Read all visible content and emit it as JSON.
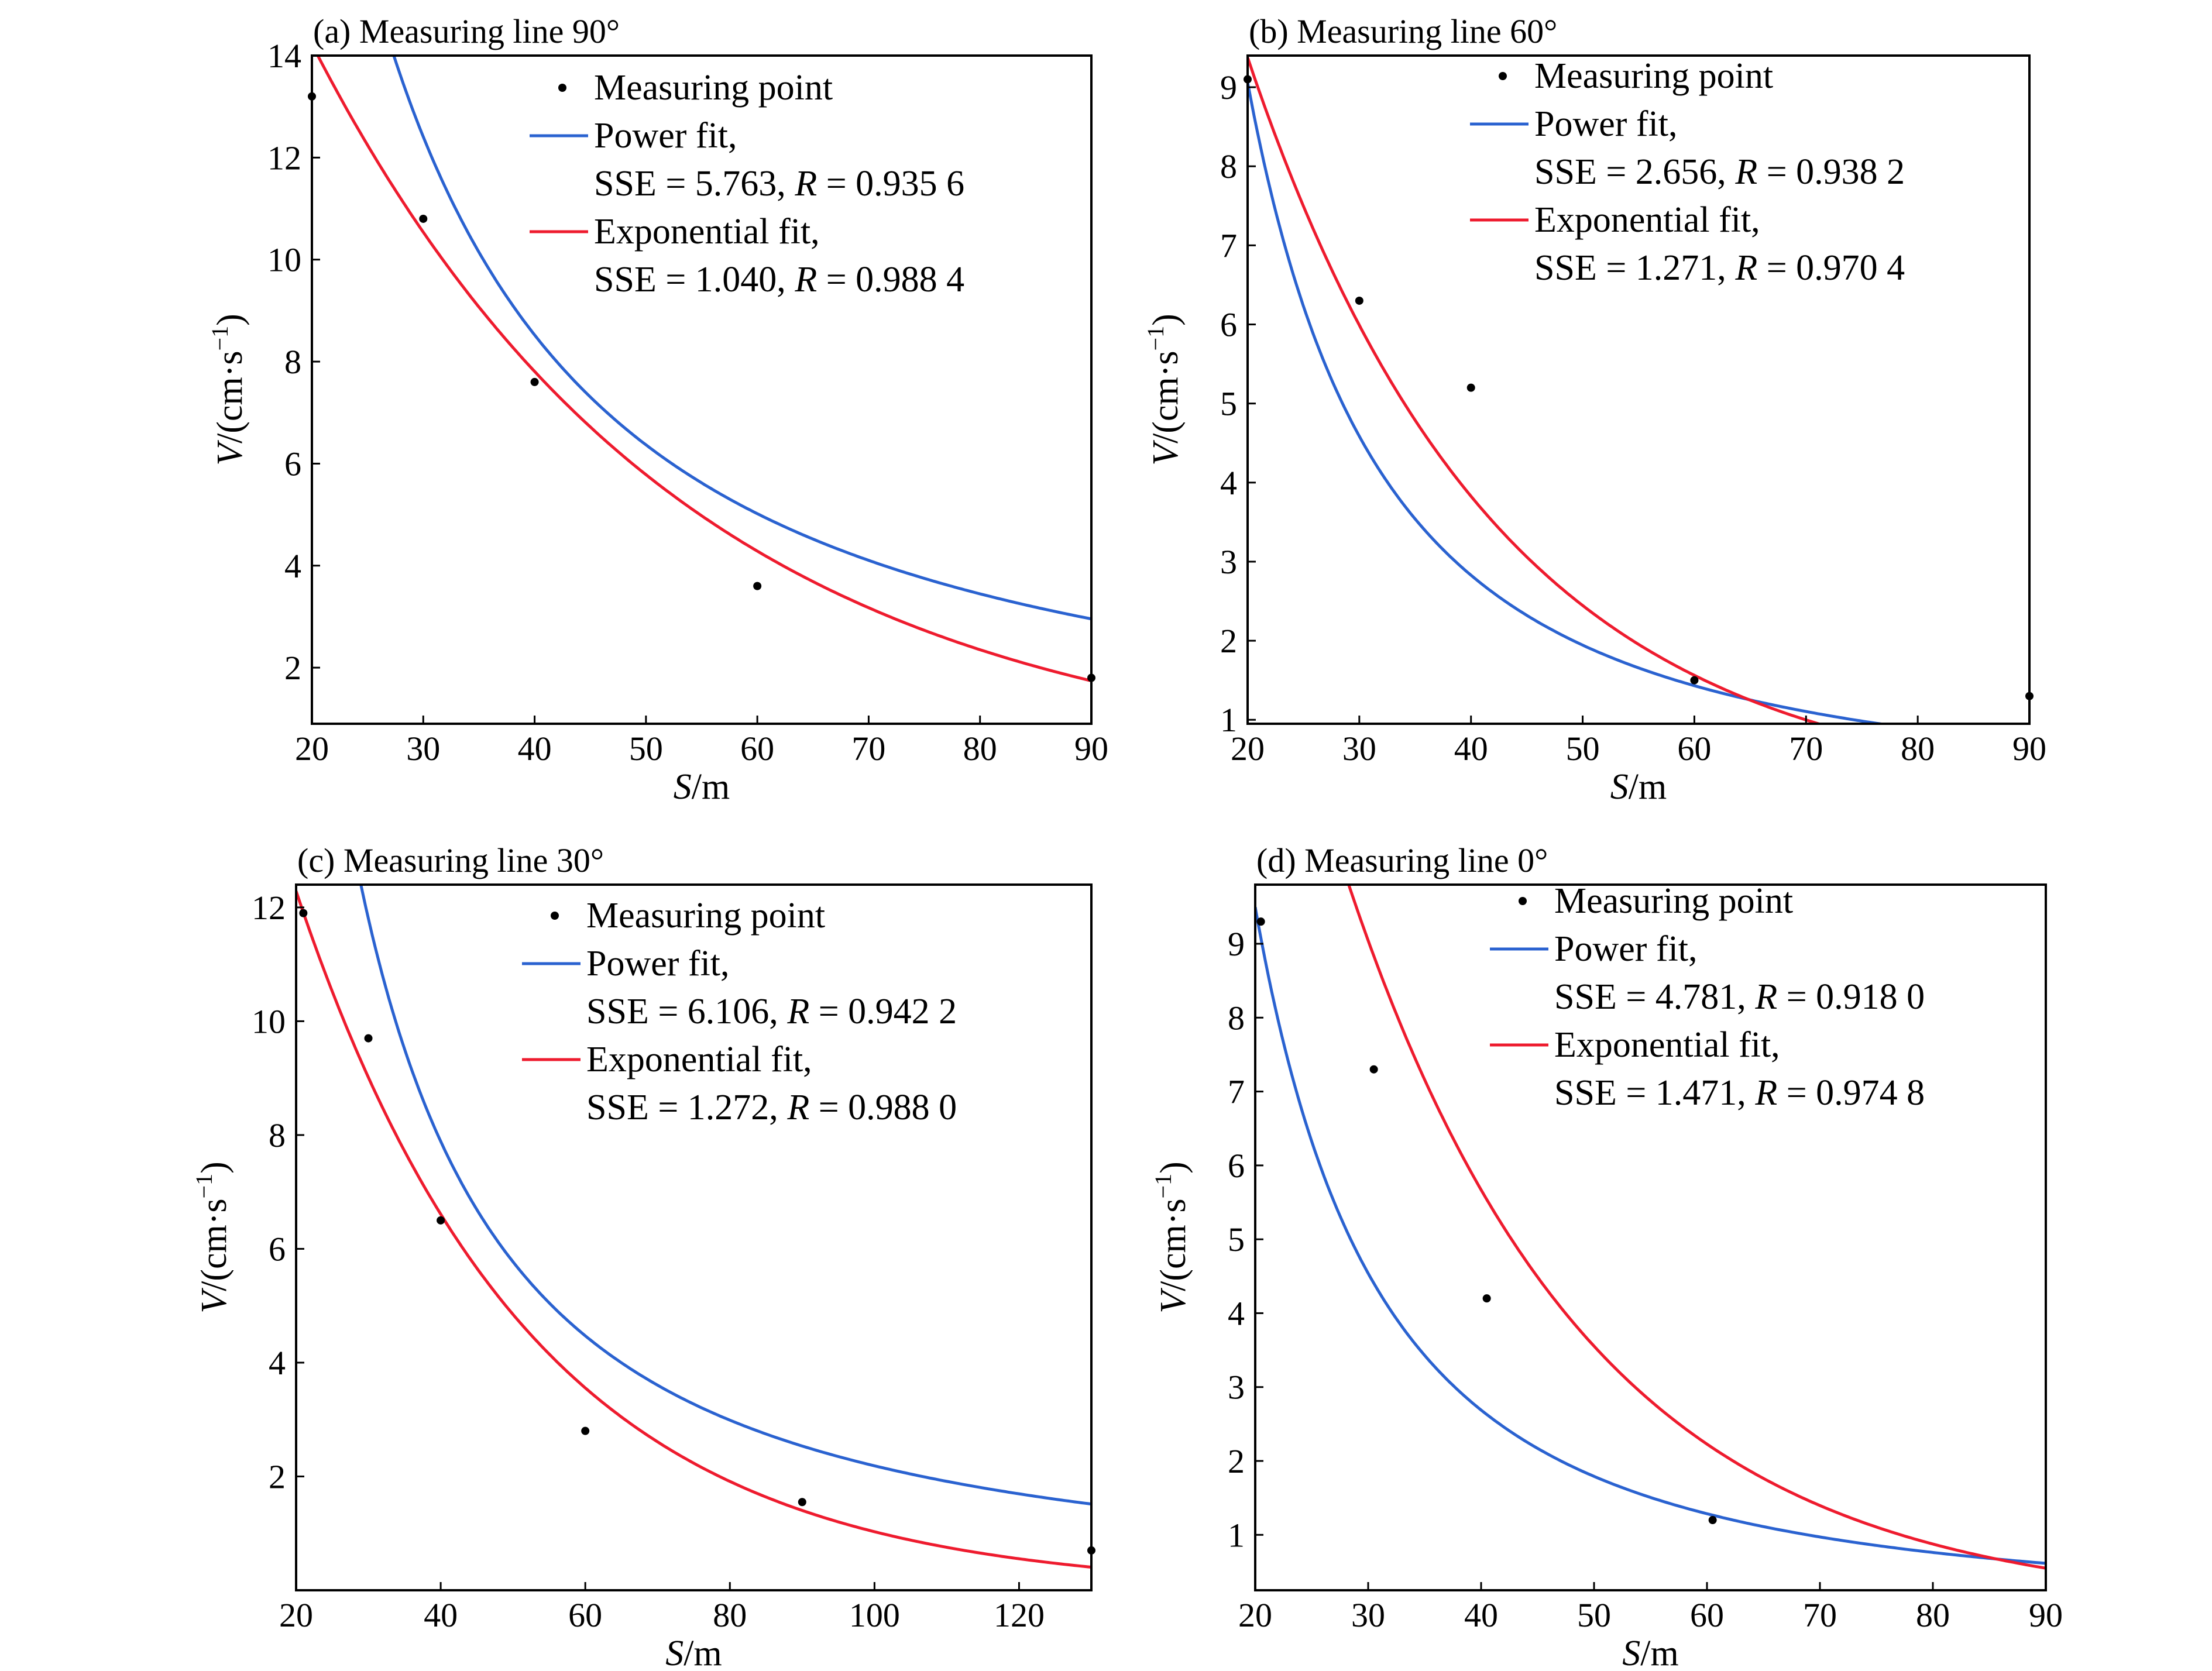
{
  "colors": {
    "power": "#2a62d0",
    "exponential": "#ee1b2e",
    "points": "#000000",
    "axis": "#000000"
  },
  "chart_data": [
    {
      "type": "scatter",
      "title": "(a) Measuring line 90°",
      "xlabel_var": "S",
      "xlabel_unit": "/m",
      "ylabel_var": "V",
      "ylabel_unit": "/(cm·s",
      "xlim": [
        20,
        90
      ],
      "ylim": [
        0.9,
        14
      ],
      "xticks": [
        20,
        30,
        40,
        50,
        60,
        70,
        80,
        90
      ],
      "yticks": [
        2,
        4,
        6,
        8,
        10,
        12,
        14
      ],
      "points": {
        "name": "Measuring point",
        "x": [
          20,
          30,
          40,
          60,
          90
        ],
        "y": [
          13.2,
          10.8,
          7.6,
          3.6,
          1.8
        ]
      },
      "power_fit": {
        "name": "Power fit,",
        "stats_pre": "SSE = 5.763, ",
        "stats_post": " = 0.935 6",
        "a": 1054,
        "b": -1.306
      },
      "exp_fit": {
        "name": "Exponential fit,",
        "stats_pre": "SSE = 1.040, ",
        "stats_post": " = 0.988 4",
        "a": 25.92,
        "b": -0.03
      }
    },
    {
      "type": "scatter",
      "title": "(b) Measuring line 60°",
      "xlabel_var": "S",
      "xlabel_unit": "/m",
      "ylabel_var": "V",
      "ylabel_unit": "/(cm·s",
      "xlim": [
        20,
        90
      ],
      "ylim": [
        0.95,
        9.4
      ],
      "xticks": [
        20,
        30,
        40,
        50,
        60,
        70,
        80,
        90
      ],
      "yticks": [
        1,
        2,
        3,
        4,
        5,
        6,
        7,
        8,
        9
      ],
      "points": {
        "name": "Measuring point",
        "x": [
          20,
          30,
          40,
          60,
          90
        ],
        "y": [
          9.1,
          6.3,
          5.2,
          1.5,
          1.3
        ]
      },
      "power_fit": {
        "name": "Power fit,",
        "stats_pre": "SSE = 2.656, ",
        "stats_post": " = 0.938 2",
        "a": 1390,
        "b": -1.68
      },
      "exp_fit": {
        "name": "Exponential fit,",
        "stats_pre": "SSE = 1.271, ",
        "stats_post": " = 0.970 4",
        "a": 22.97,
        "b": -0.0448
      }
    },
    {
      "type": "scatter",
      "title": "(c) Measuring line 30°",
      "xlabel_var": "S",
      "xlabel_unit": "/m",
      "ylabel_var": "V",
      "ylabel_unit": "/(cm·s",
      "xlim": [
        20,
        130
      ],
      "ylim": [
        0,
        12.4
      ],
      "xticks": [
        20,
        40,
        60,
        80,
        100,
        120
      ],
      "yticks": [
        2,
        4,
        6,
        8,
        10,
        12
      ],
      "points": {
        "name": "Measuring point",
        "x": [
          21,
          30,
          40,
          60,
          90,
          130
        ],
        "y": [
          11.9,
          9.7,
          6.5,
          2.8,
          1.55,
          0.7
        ]
      },
      "power_fit": {
        "name": "Power fit,",
        "stats_pre": "SSE = 6.106, ",
        "stats_post": " = 0.942 2",
        "a": 1380,
        "b": -1.4
      },
      "exp_fit": {
        "name": "Exponential fit,",
        "stats_pre": "SSE = 1.272, ",
        "stats_post": " = 0.988 0",
        "a": 22.84,
        "b": -0.031
      }
    },
    {
      "type": "scatter",
      "title": "(d) Measuring line 0°",
      "xlabel_var": "S",
      "xlabel_unit": "/m",
      "ylabel_var": "V",
      "ylabel_unit": "/(cm·s",
      "xlim": [
        20,
        90
      ],
      "ylim": [
        0.25,
        9.8
      ],
      "xticks": [
        20,
        30,
        40,
        50,
        60,
        70,
        80,
        90
      ],
      "yticks": [
        1,
        2,
        3,
        4,
        5,
        6,
        7,
        8,
        9
      ],
      "points": {
        "name": "Measuring point",
        "x": [
          20.5,
          30.5,
          40.5,
          60.5
        ],
        "y": [
          9.3,
          7.3,
          4.2,
          1.2
        ]
      },
      "power_fit": {
        "name": "Power fit,",
        "stats_pre": "SSE = 4.781, ",
        "stats_post": " = 0.918 0",
        "a": 2215,
        "b": -1.82
      },
      "exp_fit": {
        "name": "Exponential fit,",
        "stats_pre": "SSE = 1.471, ",
        "stats_post": " = 0.974 8",
        "a": 36.71,
        "b": -0.0467
      }
    }
  ]
}
